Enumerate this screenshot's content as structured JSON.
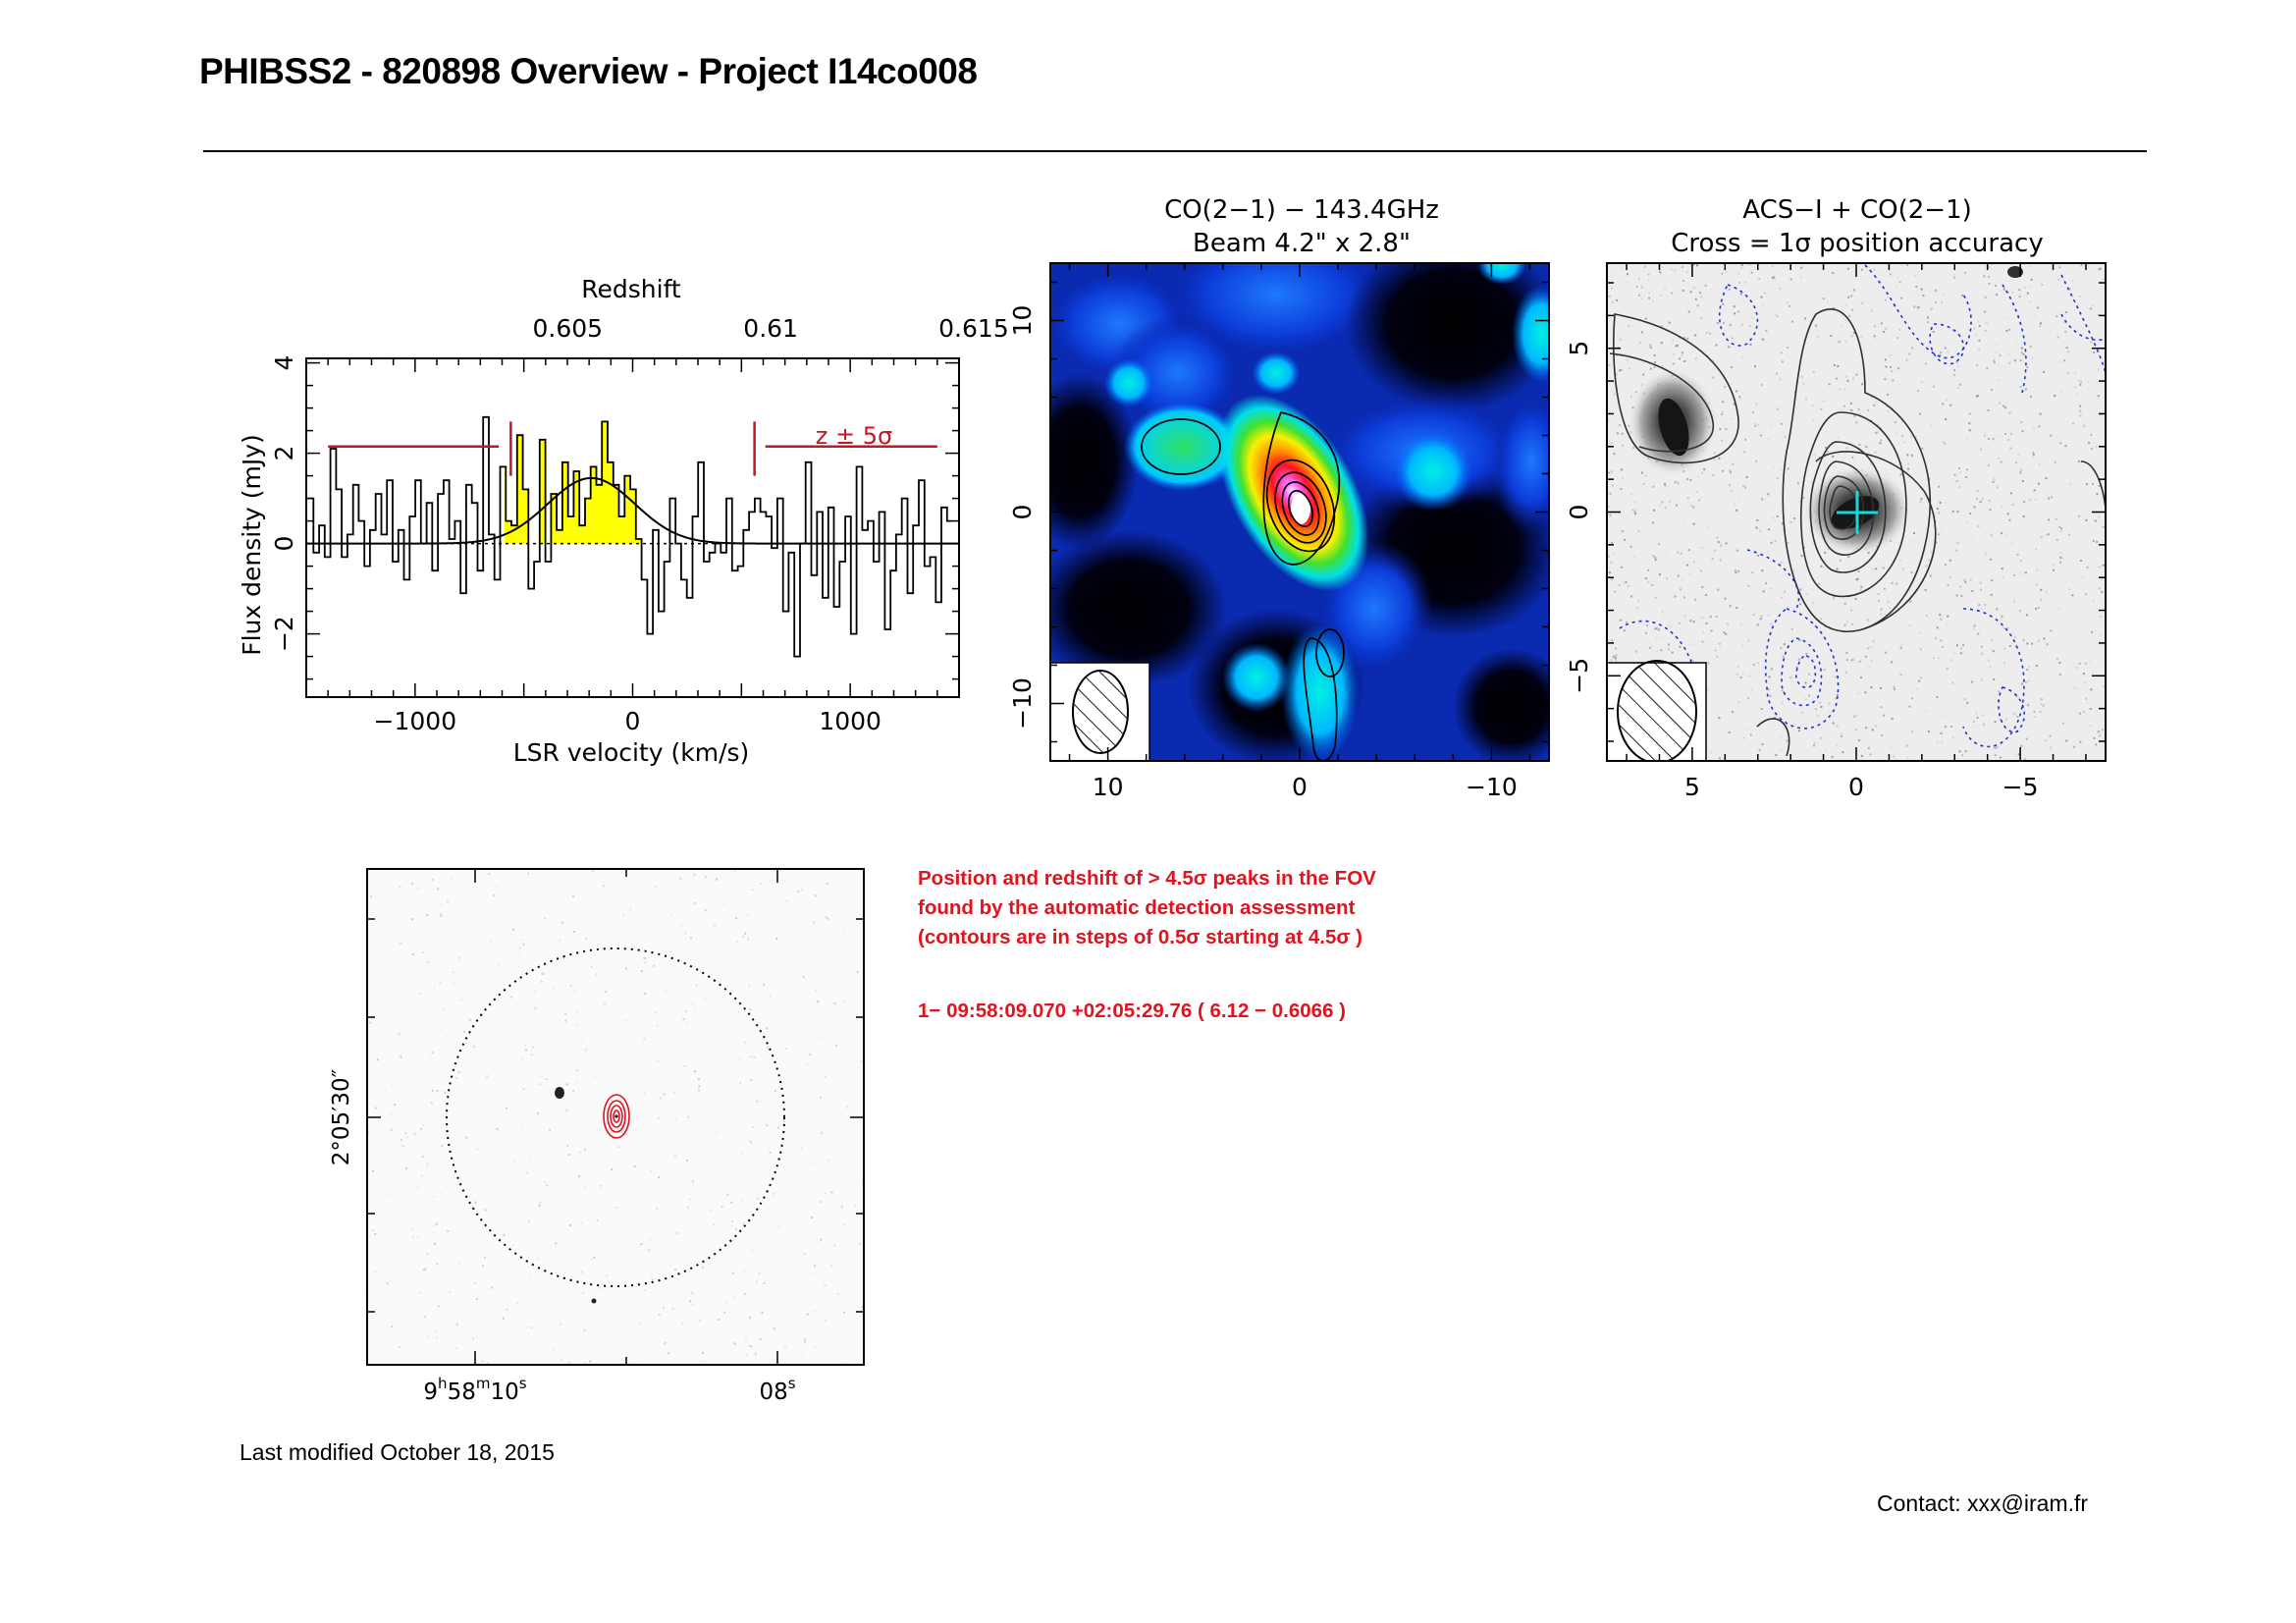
{
  "header": {
    "title": "PHIBSS2 - 820898 Overview - Project I14co008"
  },
  "colors": {
    "spectrum_fill": "#ffff00",
    "marker_red": "#c8141e",
    "cross_cyan": "#18d8d8",
    "text_red": "#e0141e"
  },
  "chart_data": [
    {
      "type": "line",
      "subtype": "step-spectrum",
      "title": "",
      "top_axis_label": "Redshift",
      "top_ticks": [
        "0.605",
        "0.61",
        "0.615"
      ],
      "xlabel": "LSR velocity (km/s)",
      "ylabel": "Flux density (mJy)",
      "x_ticks": [
        "−1000",
        "0",
        "1000"
      ],
      "y_ticks": [
        "−2",
        "0",
        "2",
        "4"
      ],
      "xlim": [
        -1500,
        1500
      ],
      "ylim": [
        -3.4,
        4.1
      ],
      "annotation": "z ± 5σ",
      "velocity_channel_width": 26,
      "velocities": [
        -1480,
        -1454,
        -1428,
        -1402,
        -1376,
        -1350,
        -1324,
        -1298,
        -1272,
        -1246,
        -1220,
        -1194,
        -1168,
        -1142,
        -1116,
        -1090,
        -1064,
        -1038,
        -1012,
        -986,
        -960,
        -934,
        -908,
        -882,
        -856,
        -830,
        -804,
        -778,
        -752,
        -726,
        -700,
        -674,
        -648,
        -622,
        -596,
        -570,
        -544,
        -518,
        -492,
        -466,
        -440,
        -414,
        -388,
        -362,
        -336,
        -310,
        -284,
        -258,
        -232,
        -206,
        -180,
        -154,
        -128,
        -102,
        -76,
        -50,
        -24,
        2,
        28,
        54,
        80,
        106,
        132,
        158,
        184,
        210,
        236,
        262,
        288,
        314,
        340,
        366,
        392,
        418,
        444,
        470,
        496,
        522,
        548,
        574,
        600,
        626,
        652,
        678,
        704,
        730,
        756,
        782,
        808,
        834,
        860,
        886,
        912,
        938,
        964,
        990,
        1016,
        1042,
        1068,
        1094,
        1120,
        1146,
        1172,
        1198,
        1224,
        1250,
        1276,
        1302,
        1328,
        1354,
        1380,
        1406,
        1432,
        1458
      ],
      "flux": [
        1.0,
        -0.2,
        0.4,
        -0.3,
        2.1,
        1.2,
        -0.3,
        0.2,
        1.3,
        0.5,
        -0.5,
        0.3,
        1.1,
        0.2,
        1.4,
        -0.4,
        0.3,
        -0.8,
        0.6,
        1.4,
        0.0,
        0.9,
        -0.6,
        1.1,
        1.4,
        0.1,
        0.5,
        -1.1,
        1.3,
        0.9,
        -0.6,
        2.8,
        0.2,
        -0.8,
        1.7,
        0.5,
        0.4,
        2.4,
        1.2,
        -1.0,
        -0.4,
        2.3,
        -0.4,
        1.1,
        0.3,
        1.8,
        0.6,
        1.6,
        0.4,
        1.0,
        1.7,
        1.3,
        2.7,
        1.8,
        1.3,
        0.6,
        1.5,
        1.2,
        0.1,
        -0.8,
        -2.0,
        0.3,
        -1.5,
        -0.4,
        1.0,
        0.0,
        -0.8,
        -1.2,
        0.6,
        1.8,
        -0.4,
        -0.2,
        0.0,
        -0.2,
        1.0,
        -0.6,
        -0.5,
        0.3,
        0.7,
        1.0,
        0.7,
        0.6,
        -0.1,
        1.0,
        -1.5,
        -0.2,
        -2.5,
        0.0,
        1.8,
        -0.7,
        0.7,
        -1.2,
        0.8,
        -1.4,
        -0.4,
        0.6,
        -2.0,
        1.7,
        0.3,
        0.5,
        -0.4,
        0.7,
        -1.9,
        -0.6,
        0.2,
        1.0,
        -1.1,
        0.4,
        1.4,
        -0.5,
        -0.3,
        -1.3,
        0.8,
        0.5,
        0.0,
        -0.6
      ],
      "gaussian_fit": {
        "amplitude": 1.45,
        "center_velocity": -190,
        "sigma_velocity": 200
      },
      "yellow_window_velocity": [
        -590,
        80
      ],
      "red_markers_velocity": [
        -560,
        560
      ]
    },
    {
      "type": "heatmap",
      "title": "CO(2−1) − 143.4GHz",
      "subtitle": "Beam 4.2\" x 2.8\"",
      "x_ticks": [
        "10",
        "0",
        "−10"
      ],
      "y_ticks": [
        "10",
        "0",
        "−10"
      ],
      "xlim": [
        13,
        -13
      ],
      "ylim": [
        -13,
        13
      ],
      "colormap": "black-blue-cyan-green-yellow-red-magenta-white",
      "peak_offset_arcsec": [
        0,
        0
      ]
    },
    {
      "type": "heatmap",
      "title": "ACS−I + CO(2−1)",
      "subtitle": "Cross = 1σ position accuracy",
      "x_ticks": [
        "5",
        "0",
        "−5"
      ],
      "y_ticks": [
        "5",
        "0",
        "−5"
      ],
      "xlim": [
        7.6,
        -7.6
      ],
      "ylim": [
        -7.6,
        7.6
      ],
      "colormap": "grayscale"
    },
    {
      "type": "heatmap",
      "title": "",
      "x_ticks": [
        {
          "base": "9",
          "h": "h",
          "mid": "58",
          "m": "m",
          "tail": "10",
          "s": "s"
        },
        {
          "base": "08",
          "s": "s"
        }
      ],
      "y_tick": "2°05′30″",
      "colormap": "grayscale"
    }
  ],
  "detection": {
    "lines": [
      "Position and redshift of > 4.5σ peaks in the FOV",
      "found by the automatic detection assessment",
      "(contours are in steps of 0.5σ starting at 4.5σ )"
    ],
    "peak": "1−   09:58:09.070   +02:05:29.76    ( 6.12 − 0.6066 )"
  },
  "footer": {
    "last_modified": "Last modified October 18, 2015",
    "contact": "Contact: xxx@iram.fr"
  }
}
